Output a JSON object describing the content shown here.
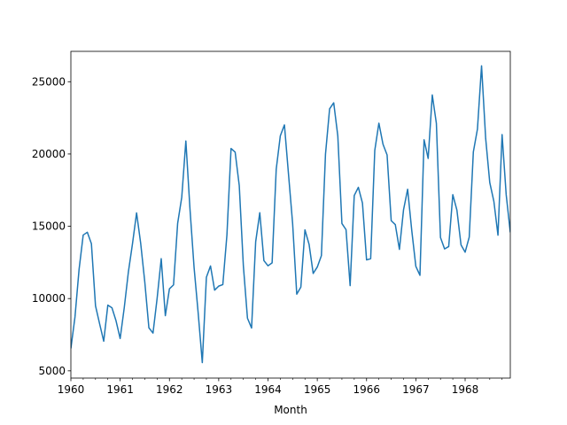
{
  "chart_data": {
    "type": "line",
    "title": "",
    "xlabel": "Month",
    "ylabel": "",
    "grid": false,
    "legend": "none",
    "xlim": [
      "1960-01",
      "1968-12"
    ],
    "ylim": [
      4500,
      27100
    ],
    "x_ticks": [
      "1960",
      "1961",
      "1962",
      "1963",
      "1964",
      "1965",
      "1966",
      "1967",
      "1968"
    ],
    "y_ticks": [
      5000,
      10000,
      15000,
      20000,
      25000
    ],
    "series": [
      {
        "color": "#1f77b4",
        "x": [
          "1960-01",
          "1960-02",
          "1960-03",
          "1960-04",
          "1960-05",
          "1960-06",
          "1960-07",
          "1960-08",
          "1960-09",
          "1960-10",
          "1960-11",
          "1960-12",
          "1961-01",
          "1961-02",
          "1961-03",
          "1961-04",
          "1961-05",
          "1961-06",
          "1961-07",
          "1961-08",
          "1961-09",
          "1961-10",
          "1961-11",
          "1961-12",
          "1962-01",
          "1962-02",
          "1962-03",
          "1962-04",
          "1962-05",
          "1962-06",
          "1962-07",
          "1962-08",
          "1962-09",
          "1962-10",
          "1962-11",
          "1962-12",
          "1963-01",
          "1963-02",
          "1963-03",
          "1963-04",
          "1963-05",
          "1963-06",
          "1963-07",
          "1963-08",
          "1963-09",
          "1963-10",
          "1963-11",
          "1963-12",
          "1964-01",
          "1964-02",
          "1964-03",
          "1964-04",
          "1964-05",
          "1964-06",
          "1964-07",
          "1964-08",
          "1964-09",
          "1964-10",
          "1964-11",
          "1964-12",
          "1965-01",
          "1965-02",
          "1965-03",
          "1965-04",
          "1965-05",
          "1965-06",
          "1965-07",
          "1965-08",
          "1965-09",
          "1965-10",
          "1965-11",
          "1965-12",
          "1966-01",
          "1966-02",
          "1966-03",
          "1966-04",
          "1966-05",
          "1966-06",
          "1966-07",
          "1966-08",
          "1966-09",
          "1966-10",
          "1966-11",
          "1966-12",
          "1967-01",
          "1967-02",
          "1967-03",
          "1967-04",
          "1967-05",
          "1967-06",
          "1967-07",
          "1967-08",
          "1967-09",
          "1967-10",
          "1967-11",
          "1967-12",
          "1968-01",
          "1968-02",
          "1968-03",
          "1968-04",
          "1968-05",
          "1968-06",
          "1968-07",
          "1968-08",
          "1968-09",
          "1968-10",
          "1968-11",
          "1968-12"
        ],
        "values": [
          6550,
          8728,
          12026,
          14395,
          14587,
          13791,
          9498,
          8251,
          7049,
          9545,
          9364,
          8456,
          7237,
          9374,
          11837,
          13784,
          15926,
          13821,
          11143,
          7975,
          7610,
          10015,
          12759,
          8816,
          10677,
          10947,
          15200,
          17010,
          20900,
          16205,
          12143,
          8997,
          5568,
          11474,
          12256,
          10583,
          10862,
          10965,
          14405,
          20379,
          20128,
          17816,
          12268,
          8642,
          7962,
          13932,
          15936,
          12628,
          12267,
          12470,
          18944,
          21259,
          22015,
          18581,
          15175,
          10306,
          10792,
          14752,
          13754,
          11738,
          12181,
          12965,
          19990,
          23125,
          23541,
          21247,
          15189,
          14767,
          10895,
          17130,
          17697,
          16611,
          12674,
          12760,
          20249,
          22135,
          20677,
          19933,
          15388,
          15113,
          13401,
          16135,
          17562,
          14720,
          12225,
          11608,
          20985,
          19692,
          24081,
          22114,
          14220,
          13434,
          13598,
          17187,
          16119,
          13713,
          13210,
          14251,
          20139,
          21725,
          26099,
          21084,
          18024,
          16722,
          14385,
          21342,
          17180,
          14577
        ]
      }
    ]
  }
}
